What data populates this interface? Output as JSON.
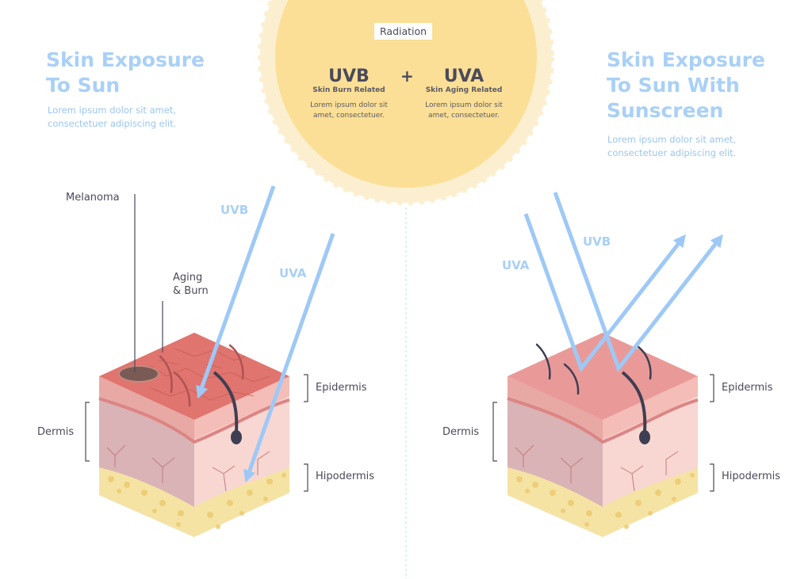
{
  "colors": {
    "title_blue": "#a9d0f7",
    "sun": "#fbdf96",
    "sun_ring": "#fcefd0",
    "arrow": "#9ec9f6",
    "epidermis_top": "#e0746e",
    "dermis": "#f2c0bf",
    "hypodermis": "#f5e3a4",
    "text": "#4a4a5a"
  },
  "sun": {
    "badge": "Radiation",
    "plus": "+",
    "uvb": {
      "title": "UVB",
      "subtitle": "Skin Burn Related",
      "text": "Lorem ipsum dolor sit amet, consectetuer."
    },
    "uva": {
      "title": "UVA",
      "subtitle": "Skin Aging Related",
      "text": "Lorem ipsum dolor sit amet, consectetuer."
    }
  },
  "left": {
    "title_line1": "Skin Exposure",
    "title_line2": "To Sun",
    "desc": "Lorem ipsum dolor sit amet, consectetuer adipiscing elit.",
    "labels": {
      "melanoma": "Melanoma",
      "aging1": "Aging",
      "aging2": "& Burn",
      "uvb": "UVB",
      "uva": "UVA",
      "epidermis": "Epidermis",
      "dermis": "Dermis",
      "hipodermis": "Hipodermis"
    }
  },
  "right": {
    "title_line1": "Skin Exposure",
    "title_line2": "To Sun With",
    "title_line3": "Sunscreen",
    "desc": "Lorem ipsum dolor sit amet, consectetuer adipiscing elit.",
    "labels": {
      "uva": "UVA",
      "uvb": "UVB",
      "epidermis": "Epidermis",
      "dermis": "Dermis",
      "hipodermis": "Hipodermis"
    }
  }
}
